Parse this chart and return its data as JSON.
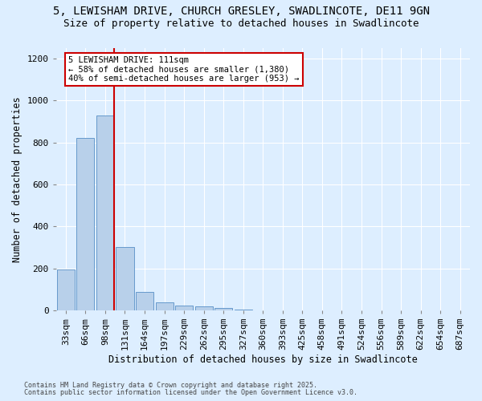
{
  "title1": "5, LEWISHAM DRIVE, CHURCH GRESLEY, SWADLINCOTE, DE11 9GN",
  "title2": "Size of property relative to detached houses in Swadlincote",
  "xlabel": "Distribution of detached houses by size in Swadlincote",
  "ylabel": "Number of detached properties",
  "categories": [
    "33sqm",
    "66sqm",
    "98sqm",
    "131sqm",
    "164sqm",
    "197sqm",
    "229sqm",
    "262sqm",
    "295sqm",
    "327sqm",
    "360sqm",
    "393sqm",
    "425sqm",
    "458sqm",
    "491sqm",
    "524sqm",
    "556sqm",
    "589sqm",
    "622sqm",
    "654sqm",
    "687sqm"
  ],
  "values": [
    195,
    820,
    930,
    300,
    88,
    37,
    22,
    18,
    10,
    5,
    0,
    0,
    0,
    0,
    0,
    0,
    0,
    0,
    0,
    0,
    0
  ],
  "bar_color": "#b8d0ea",
  "bar_edgecolor": "#6699cc",
  "redline_color": "#cc0000",
  "annotation_text": "5 LEWISHAM DRIVE: 111sqm\n← 58% of detached houses are smaller (1,380)\n40% of semi-detached houses are larger (953) →",
  "annotation_box_color": "#ffffff",
  "annotation_edgecolor": "#cc0000",
  "ylim": [
    0,
    1250
  ],
  "yticks": [
    0,
    200,
    400,
    600,
    800,
    1000,
    1200
  ],
  "background_color": "#ddeeff",
  "grid_color": "#ffffff",
  "footnote1": "Contains HM Land Registry data © Crown copyright and database right 2025.",
  "footnote2": "Contains public sector information licensed under the Open Government Licence v3.0.",
  "title1_fontsize": 10,
  "title2_fontsize": 9,
  "xlabel_fontsize": 8.5,
  "ylabel_fontsize": 8.5,
  "tick_fontsize": 8,
  "annot_fontsize": 7.5,
  "footnote_fontsize": 6
}
